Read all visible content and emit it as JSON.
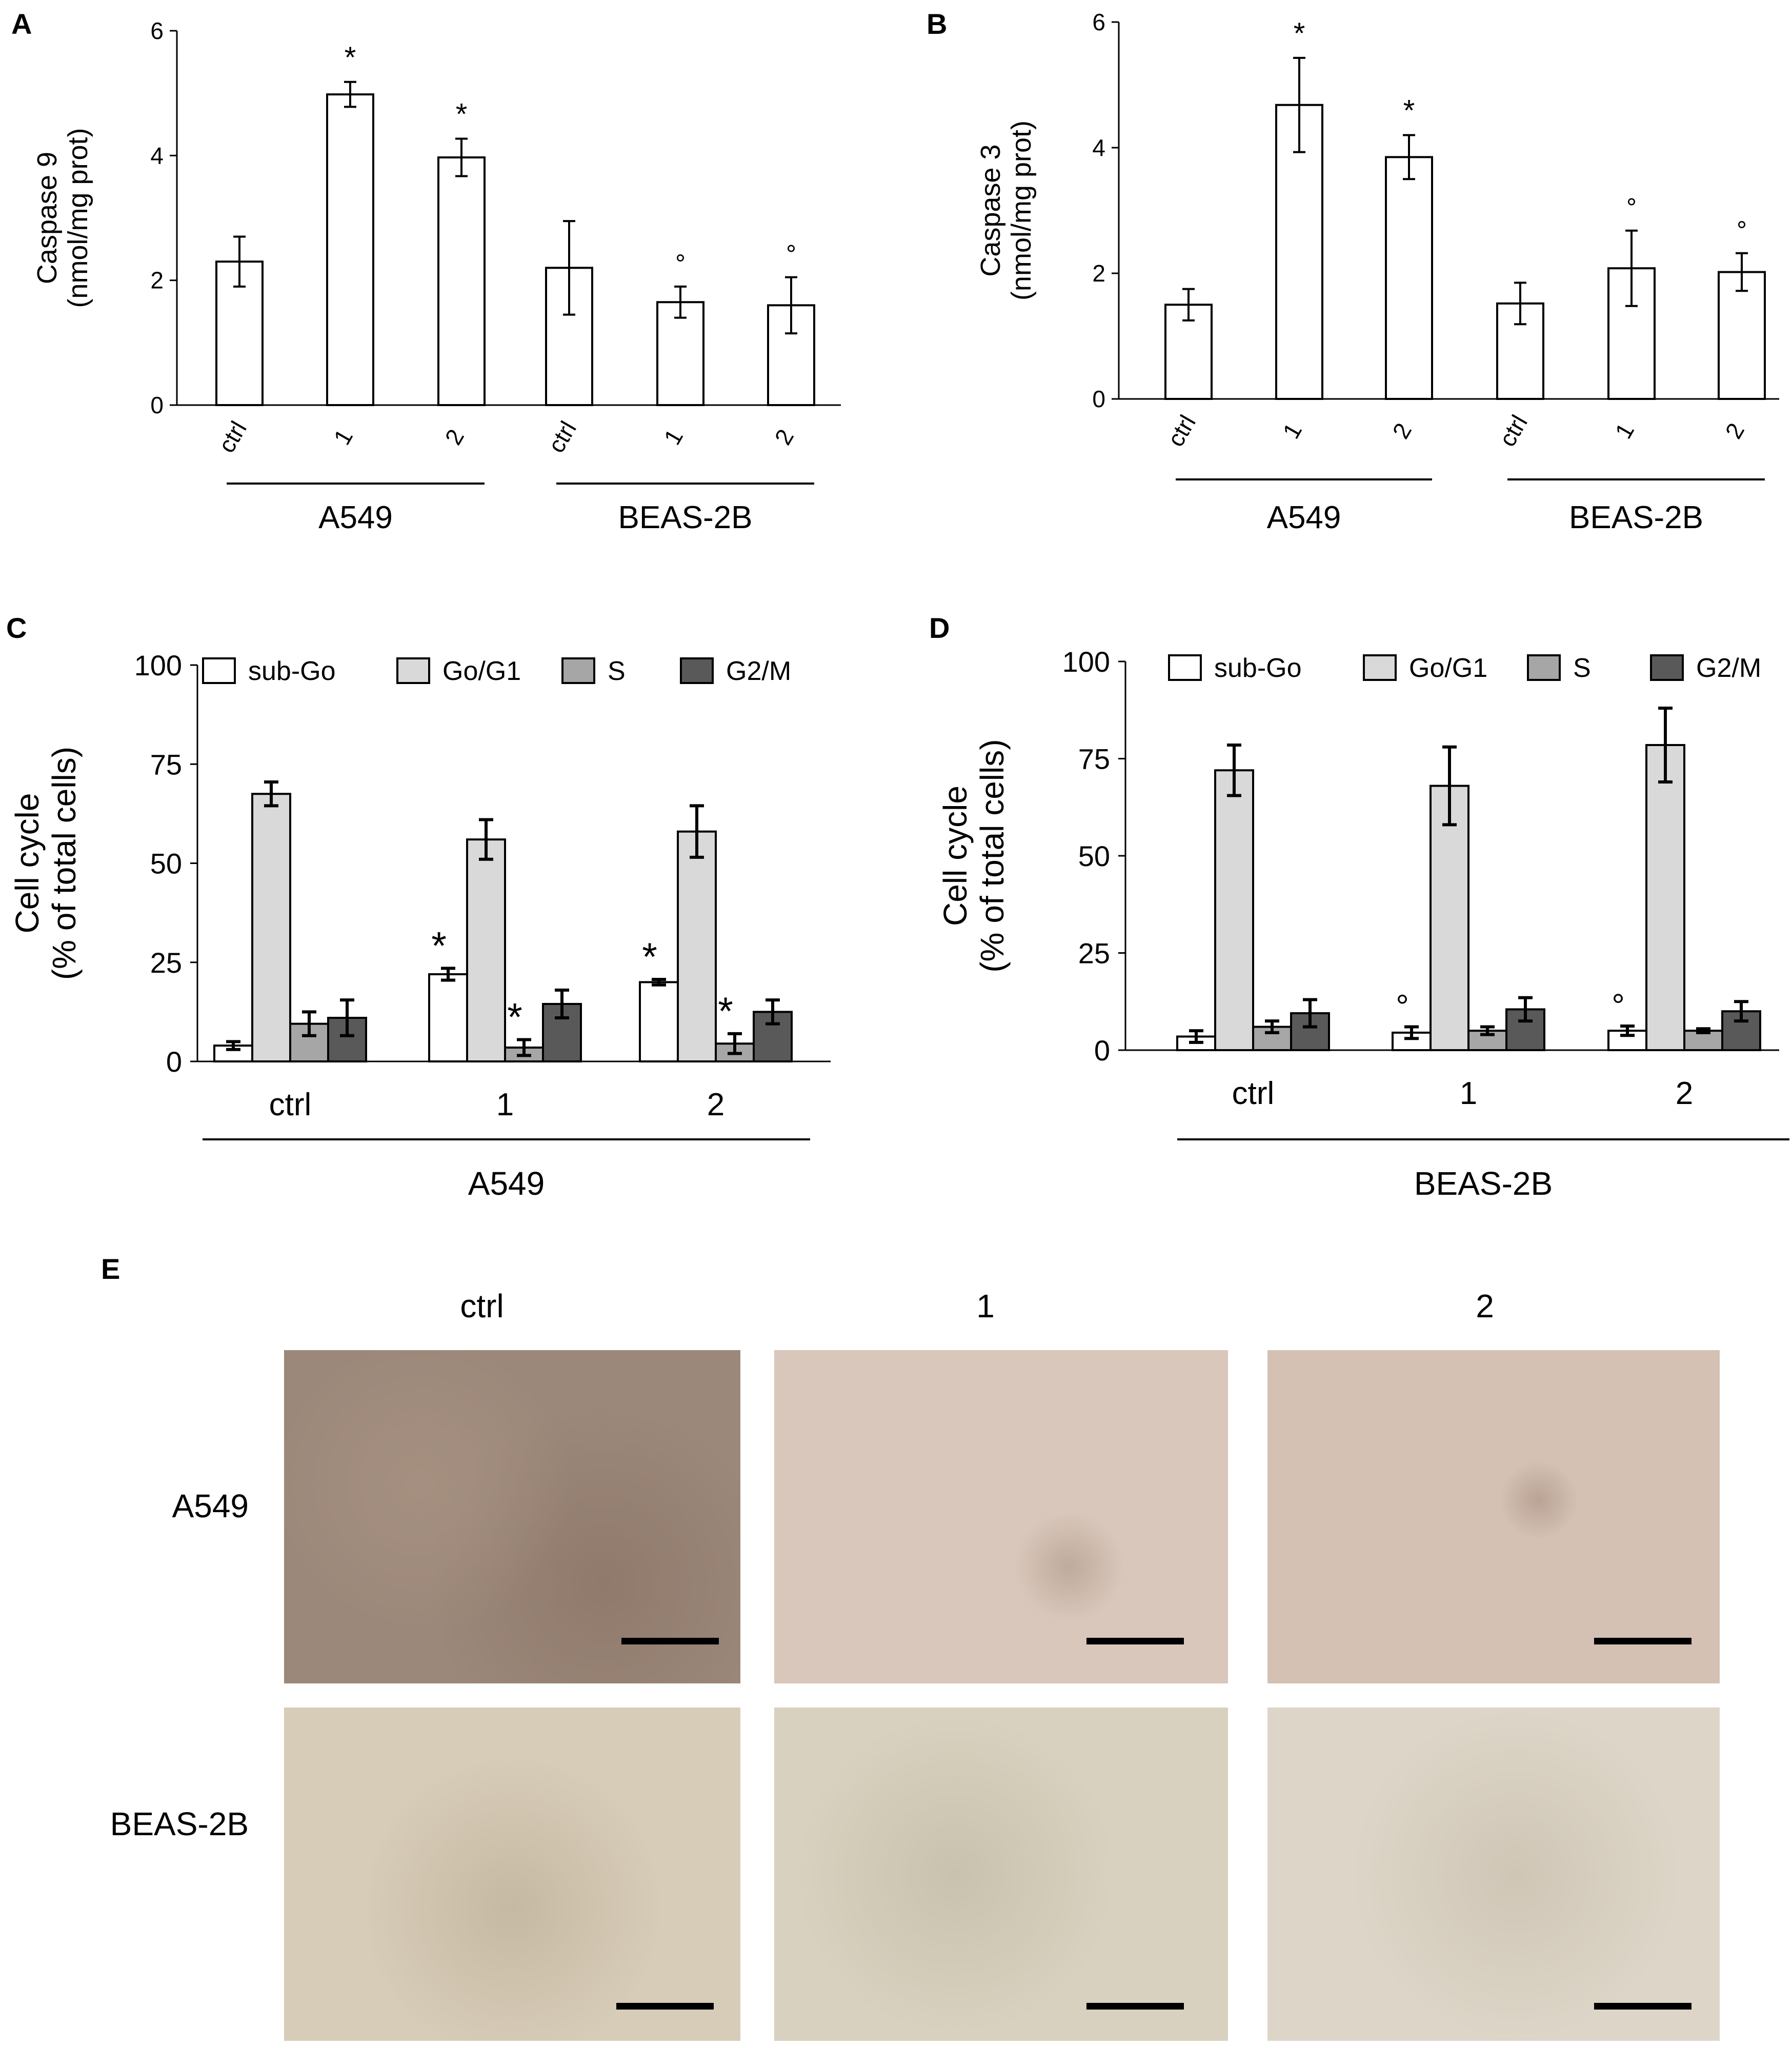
{
  "panels": {
    "A": "A",
    "B": "B",
    "C": "C",
    "D": "D",
    "E": "E"
  },
  "chart_data": [
    {
      "id": "A",
      "type": "bar",
      "ylabel": [
        "Caspase 9",
        "(nmol/mg prot)"
      ],
      "ylim": [
        0,
        6
      ],
      "yticks": [
        "0",
        "2",
        "4",
        "6"
      ],
      "categories": [
        "ctrl",
        "1",
        "2",
        "ctrl",
        "1",
        "2"
      ],
      "groups": [
        {
          "label": "A549",
          "indices": [
            0,
            1,
            2
          ]
        },
        {
          "label": "BEAS-2B",
          "indices": [
            3,
            4,
            5
          ]
        }
      ],
      "values": [
        2.3,
        4.98,
        3.97,
        2.2,
        1.65,
        1.6
      ],
      "errors": [
        0.4,
        0.2,
        0.3,
        0.75,
        0.25,
        0.45
      ],
      "annotations": [
        "",
        "*",
        "*",
        "",
        "°",
        "°"
      ]
    },
    {
      "id": "B",
      "type": "bar",
      "ylabel": [
        "Caspase 3",
        "(nmol/mg prot)"
      ],
      "ylim": [
        0,
        6
      ],
      "yticks": [
        "0",
        "2",
        "4",
        "6"
      ],
      "categories": [
        "ctrl",
        "1",
        "2",
        "ctrl",
        "1",
        "2"
      ],
      "groups": [
        {
          "label": "A549",
          "indices": [
            0,
            1,
            2
          ]
        },
        {
          "label": "BEAS-2B",
          "indices": [
            3,
            4,
            5
          ]
        }
      ],
      "values": [
        1.5,
        4.68,
        3.85,
        1.52,
        2.08,
        2.02
      ],
      "errors": [
        0.25,
        0.75,
        0.35,
        0.33,
        0.6,
        0.3
      ],
      "annotations": [
        "",
        "*",
        "*",
        "",
        "°",
        "°"
      ]
    },
    {
      "id": "C",
      "type": "bar",
      "ylabel": [
        "Cell cycle",
        "(% of total cells)"
      ],
      "ylim": [
        0,
        100
      ],
      "yticks": [
        "0",
        "25",
        "50",
        "75",
        "100"
      ],
      "categories": [
        "ctrl",
        "1",
        "2"
      ],
      "group_label": "A549",
      "series": [
        {
          "name": "sub-Go",
          "color": "#ffffff",
          "values": [
            4,
            22,
            20
          ],
          "errors": [
            1,
            1.5,
            0.7
          ],
          "annotations": [
            "",
            "*",
            "*"
          ]
        },
        {
          "name": "Go/G1",
          "color": "#d9d9d9",
          "values": [
            67.5,
            56,
            58
          ],
          "errors": [
            3,
            5,
            6.5
          ],
          "annotations": [
            "",
            "",
            ""
          ]
        },
        {
          "name": "S",
          "color": "#a6a6a6",
          "values": [
            9.5,
            3.5,
            4.5
          ],
          "errors": [
            3,
            2,
            2.5
          ],
          "annotations": [
            "",
            "*",
            "*"
          ]
        },
        {
          "name": "G2/M",
          "color": "#595959",
          "values": [
            11,
            14.5,
            12.5
          ],
          "errors": [
            4.5,
            3.5,
            3
          ],
          "annotations": [
            "",
            "",
            ""
          ]
        }
      ]
    },
    {
      "id": "D",
      "type": "bar",
      "ylabel": [
        "Cell cycle",
        "(% of total cells)"
      ],
      "ylim": [
        0,
        100
      ],
      "yticks": [
        "0",
        "25",
        "50",
        "75",
        "100"
      ],
      "categories": [
        "ctrl",
        "1",
        "2"
      ],
      "group_label": "BEAS-2B",
      "series": [
        {
          "name": "sub-Go",
          "color": "#ffffff",
          "values": [
            3.5,
            4.5,
            5
          ],
          "errors": [
            1.5,
            1.5,
            1.2
          ],
          "annotations": [
            "",
            "°",
            "°"
          ]
        },
        {
          "name": "Go/G1",
          "color": "#d9d9d9",
          "values": [
            72,
            68,
            78.5
          ],
          "errors": [
            6.5,
            10,
            9.5
          ],
          "annotations": [
            "",
            "",
            ""
          ]
        },
        {
          "name": "S",
          "color": "#a6a6a6",
          "values": [
            6,
            5,
            5
          ],
          "errors": [
            1.5,
            1,
            0.5
          ],
          "annotations": [
            "",
            "",
            ""
          ]
        },
        {
          "name": "G2/M",
          "color": "#595959",
          "values": [
            9.5,
            10.5,
            10
          ],
          "errors": [
            3.5,
            3,
            2.5
          ],
          "annotations": [
            "",
            "",
            ""
          ]
        }
      ]
    }
  ],
  "micrographs": {
    "column_titles": [
      "ctrl",
      "1",
      "2"
    ],
    "row_labels": [
      "A549",
      "BEAS-2B"
    ]
  }
}
